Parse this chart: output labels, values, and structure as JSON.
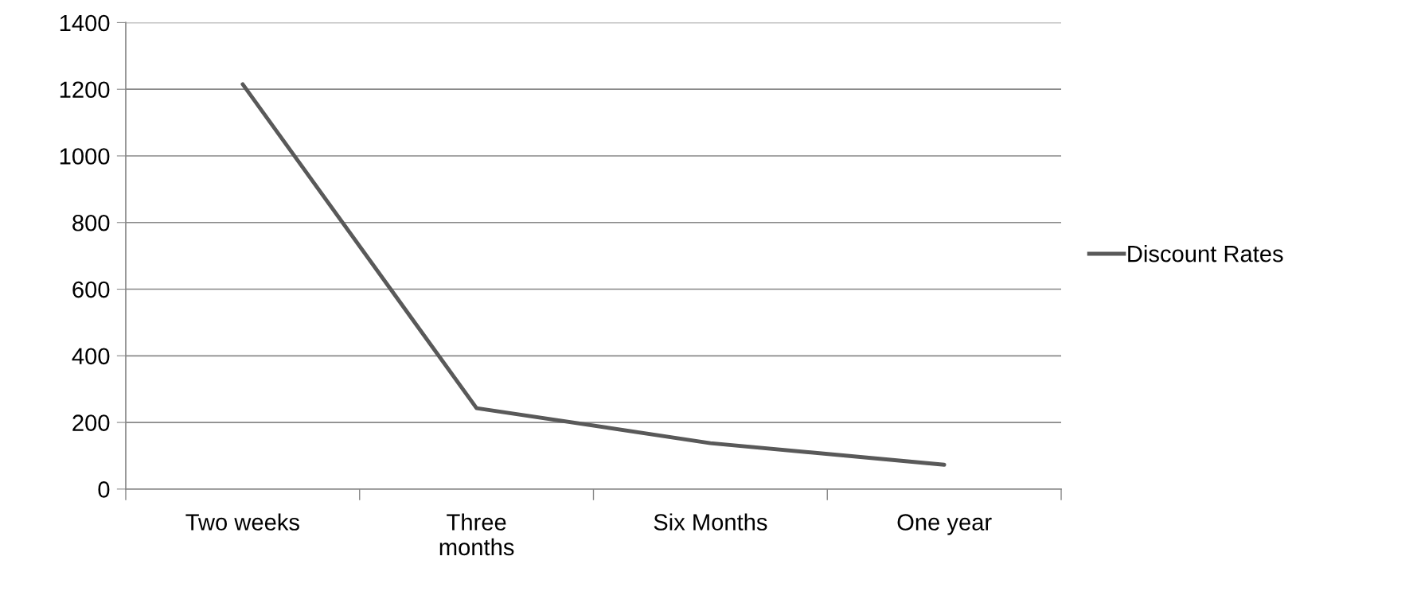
{
  "chart_data": {
    "type": "line",
    "categories": [
      "Two weeks",
      "Three months",
      "Six Months",
      "One year"
    ],
    "series": [
      {
        "name": "Discount Rates",
        "color": "#595959",
        "values": [
          1215,
          243,
          138,
          73
        ]
      }
    ],
    "ylim": [
      0,
      1400
    ],
    "yticks": [
      0,
      200,
      400,
      600,
      800,
      1000,
      1200,
      1400
    ],
    "grid": "y",
    "legend": "right",
    "marker": "none",
    "line_style": "solid"
  }
}
